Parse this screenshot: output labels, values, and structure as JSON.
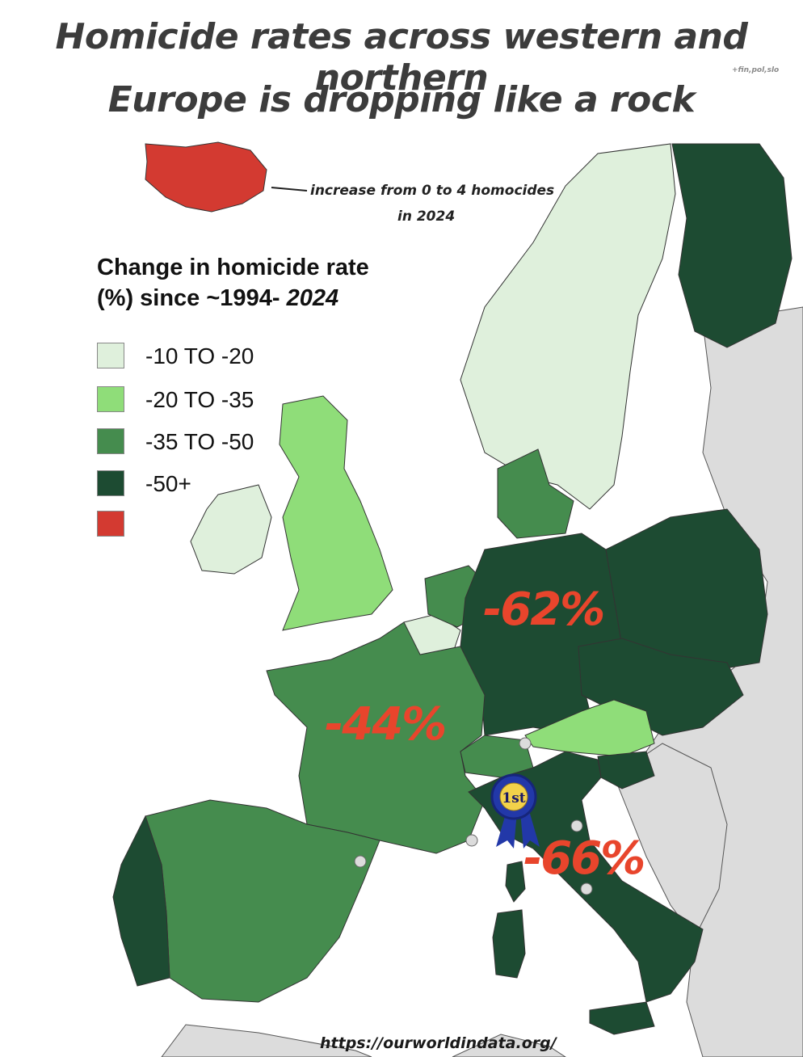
{
  "title": {
    "line1": "Homicide rates across western and northern",
    "line2": "Europe is dropping like a rock",
    "note": "+fin,pol,slo"
  },
  "legend": {
    "title_line1": "Change in homicide rate",
    "title_line2_prefix": "(%) since ~1994",
    "title_line2_mark": "-",
    "title_line2_year": "2024",
    "items": [
      {
        "label": "-10 TO -20",
        "color": "#dff0dc"
      },
      {
        "label": "-20 TO -35",
        "color": "#8fdd79"
      },
      {
        "label": "-35 TO -50",
        "color": "#458c4e"
      },
      {
        "label": "-50+",
        "color": "#1d4b32"
      },
      {
        "label": "",
        "color": "#d33a31"
      }
    ]
  },
  "annotations": {
    "iceland_line1": "increase from 0 to 4 homocides",
    "iceland_line2": "in  2024",
    "germany": "-62%",
    "france": "-44%",
    "italy": "-66%",
    "ribbon": "1st"
  },
  "source": "https://ourworldindata.org/",
  "colors": {
    "ocean": "#ffffff",
    "other_land": "#dcdcdc",
    "border": "#222222",
    "label_red": "#e8452c",
    "ribbon_blue": "#2238a8"
  }
}
